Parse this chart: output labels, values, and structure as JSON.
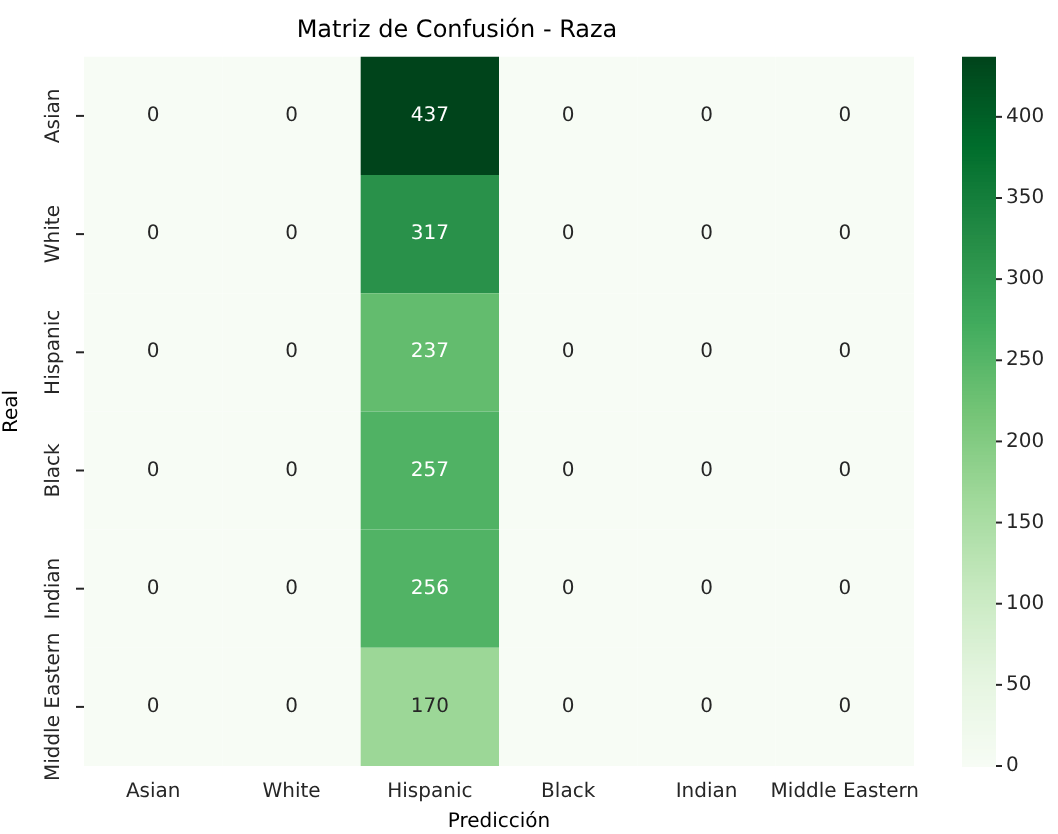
{
  "chart_data": {
    "type": "heatmap",
    "title": "Matriz de Confusión - Raza",
    "xlabel": "Predicción",
    "ylabel": "Real",
    "categories": [
      "Asian",
      "White",
      "Hispanic",
      "Black",
      "Indian",
      "Middle Eastern"
    ],
    "y_categories": [
      "Asian",
      "White",
      "Hispanic",
      "Black",
      "Indian",
      "Middle Eastern"
    ],
    "cells": [
      [
        0,
        0,
        437,
        0,
        0,
        0
      ],
      [
        0,
        0,
        317,
        0,
        0,
        0
      ],
      [
        0,
        0,
        237,
        0,
        0,
        0
      ],
      [
        0,
        0,
        257,
        0,
        0,
        0
      ],
      [
        0,
        0,
        256,
        0,
        0,
        0
      ],
      [
        0,
        0,
        170,
        0,
        0,
        0
      ]
    ],
    "data_labels": true,
    "clim": [
      0,
      437
    ],
    "cticks": [
      0,
      50,
      100,
      150,
      200,
      250,
      300,
      350,
      400
    ]
  }
}
